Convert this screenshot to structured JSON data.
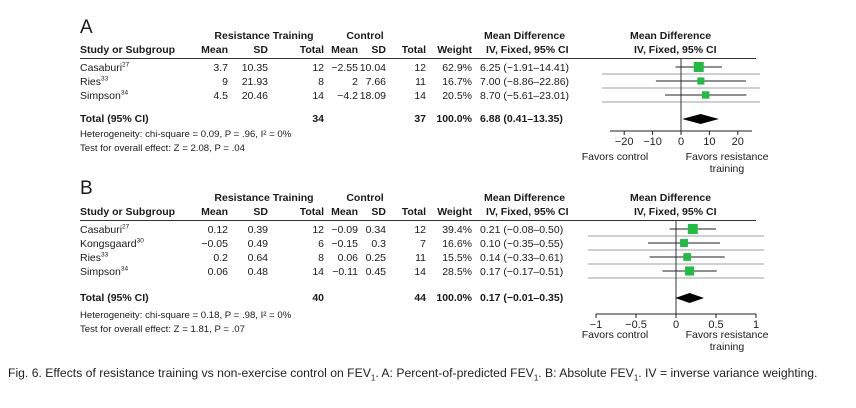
{
  "chart_data": [
    {
      "type": "forest",
      "panel": "A",
      "title": "Percent-of-predicted FEV1",
      "group_header_1": "Resistance Training",
      "group_header_2": "Control",
      "col_study": "Study or Subgroup",
      "col_mean": "Mean",
      "col_sd": "SD",
      "col_total": "Total",
      "col_weight": "Weight",
      "col_md_title": "Mean Difference",
      "col_md_sub": "IV, Fixed, 95% CI",
      "plot_title": "Mean Difference",
      "plot_sub": "IV, Fixed, 95% CI",
      "studies": [
        {
          "name": "Casaburi",
          "ref": "27",
          "rt_mean": "3.7",
          "rt_sd": "10.35",
          "rt_total": "12",
          "c_mean": "−2.55",
          "c_sd": "10.04",
          "c_total": "12",
          "weight": "62.9%",
          "ci_text": "6.25 (−1.91–14.41)",
          "md": 6.25,
          "lo": -1.91,
          "hi": 14.41,
          "w": 62.9
        },
        {
          "name": "Ries",
          "ref": "33",
          "rt_mean": "9",
          "rt_sd": "21.93",
          "rt_total": "8",
          "c_mean": "2",
          "c_sd": "7.66",
          "c_total": "11",
          "weight": "16.7%",
          "ci_text": "7.00 (−8.86–22.86)",
          "md": 7.0,
          "lo": -8.86,
          "hi": 22.86,
          "w": 16.7
        },
        {
          "name": "Simpson",
          "ref": "34",
          "rt_mean": "4.5",
          "rt_sd": "20.46",
          "rt_total": "14",
          "c_mean": "−4.2",
          "c_sd": "18.09",
          "c_total": "14",
          "weight": "20.5%",
          "ci_text": "8.70 (−5.61–23.01)",
          "md": 8.7,
          "lo": -5.61,
          "hi": 23.01,
          "w": 20.5
        }
      ],
      "total": {
        "label": "Total (95% CI)",
        "rt_total": "34",
        "c_total": "37",
        "weight": "100.0%",
        "ci_text": "6.88 (0.41–13.35)",
        "md": 6.88,
        "lo": 0.41,
        "hi": 13.35
      },
      "heterogeneity_label": "Heterogeneity",
      "heterogeneity_text": ": chi-square = 0.09, P = .96, I² = 0%",
      "overall_label": "Test for overall effect",
      "overall_text": ": Z = 2.08, P = .04",
      "xlim": [
        -25,
        25
      ],
      "ticks": [
        -20,
        -10,
        0,
        10,
        20
      ],
      "tick_labels": [
        "−20",
        "−10",
        "0",
        "10",
        "20"
      ],
      "favors_left": "Favors control",
      "favors_right": "Favors resistance training"
    },
    {
      "type": "forest",
      "panel": "B",
      "title": "Absolute FEV1",
      "group_header_1": "Resistance Training",
      "group_header_2": "Control",
      "col_study": "Study or Subgroup",
      "col_mean": "Mean",
      "col_sd": "SD",
      "col_total": "Total",
      "col_weight": "Weight",
      "col_md_title": "Mean Difference",
      "col_md_sub": "IV, Fixed, 95% CI",
      "plot_title": "Mean Difference",
      "plot_sub": "IV, Fixed, 95% CI",
      "studies": [
        {
          "name": "Casaburi",
          "ref": "27",
          "rt_mean": "0.12",
          "rt_sd": "0.39",
          "rt_total": "12",
          "c_mean": "−0.09",
          "c_sd": "0.34",
          "c_total": "12",
          "weight": "39.4%",
          "ci_text": "0.21 (−0.08–0.50)",
          "md": 0.21,
          "lo": -0.08,
          "hi": 0.5,
          "w": 39.4
        },
        {
          "name": "Kongsgaard",
          "ref": "30",
          "rt_mean": "−0.05",
          "rt_sd": "0.49",
          "rt_total": "6",
          "c_mean": "−0.15",
          "c_sd": "0.3",
          "c_total": "7",
          "weight": "16.6%",
          "ci_text": "0.10 (−0.35–0.55)",
          "md": 0.1,
          "lo": -0.35,
          "hi": 0.55,
          "w": 16.6
        },
        {
          "name": "Ries",
          "ref": "33",
          "rt_mean": "0.2",
          "rt_sd": "0.64",
          "rt_total": "8",
          "c_mean": "0.06",
          "c_sd": "0.25",
          "c_total": "11",
          "weight": "15.5%",
          "ci_text": "0.14 (−0.33–0.61)",
          "md": 0.14,
          "lo": -0.33,
          "hi": 0.61,
          "w": 15.5
        },
        {
          "name": "Simpson",
          "ref": "34",
          "rt_mean": "0.06",
          "rt_sd": "0.48",
          "rt_total": "14",
          "c_mean": "−0.11",
          "c_sd": "0.45",
          "c_total": "14",
          "weight": "28.5%",
          "ci_text": "0.17 (−0.17–0.51)",
          "md": 0.17,
          "lo": -0.17,
          "hi": 0.51,
          "w": 28.5
        }
      ],
      "total": {
        "label": "Total (95% CI)",
        "rt_total": "40",
        "c_total": "44",
        "weight": "100.0%",
        "ci_text": "0.17 (−0.01–0.35)",
        "md": 0.17,
        "lo": -0.01,
        "hi": 0.35
      },
      "heterogeneity_label": "Heterogeneity",
      "heterogeneity_text": ": chi-square = 0.18, P = .98, I² = 0%",
      "overall_label": "Test for overall effect",
      "overall_text": ": Z = 1.81, P = .07",
      "xlim": [
        -1,
        1
      ],
      "ticks": [
        -1,
        -0.5,
        0,
        0.5,
        1
      ],
      "tick_labels": [
        "−1",
        "−0.5",
        "0",
        "0.5",
        "1"
      ],
      "favors_left": "Favors control",
      "favors_right": "Favors resistance training"
    }
  ],
  "caption": {
    "text_1": "Fig. 6. Effects of resistance training vs non-exercise control on FEV",
    "sub_1": "1",
    "text_2": ". A: Percent-of-predicted FEV",
    "sub_2": "1",
    "text_3": ". B: Absolute FEV",
    "sub_3": "1",
    "text_4": ". IV = inverse variance weighting."
  },
  "colors": {
    "marker": "#22bb44",
    "diamond": "#000000",
    "text": "#1a1a1a"
  }
}
